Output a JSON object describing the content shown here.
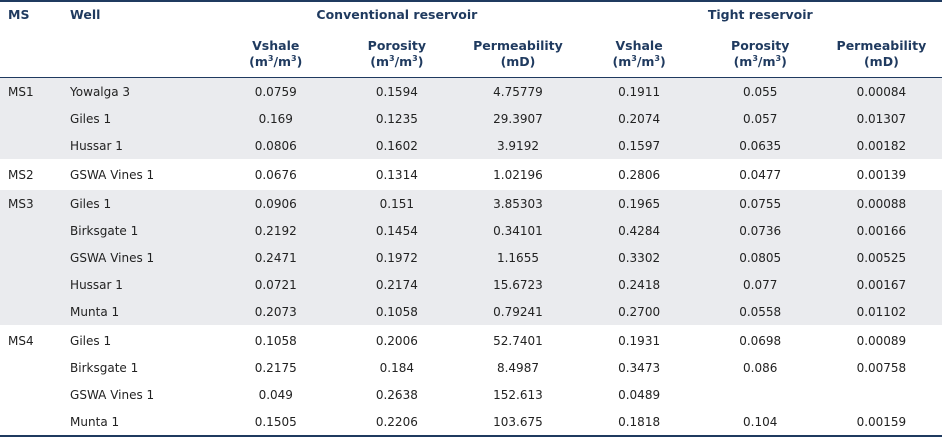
{
  "header": {
    "ms": "MS",
    "well": "Well",
    "conventional": "Conventional reservoir",
    "tight": "Tight reservoir",
    "vshale": "Vshale",
    "porosity": "Porosity",
    "permeability": "Permeability",
    "unit_frac_base": "(m",
    "unit_frac_mid": "/m",
    "unit_frac_end": ")",
    "unit_frac_exp": "3",
    "unit_md": "(mD)"
  },
  "groups": [
    {
      "ms": "MS1",
      "rows": [
        {
          "well": "Yowalga 3",
          "c_vsh": "0.0759",
          "c_por": "0.1594",
          "c_perm": "4.75779",
          "t_vsh": "0.1911",
          "t_por": "0.055",
          "t_perm": "0.00084"
        },
        {
          "well": "Giles 1",
          "c_vsh": "0.169",
          "c_por": "0.1235",
          "c_perm": "29.3907",
          "t_vsh": "0.2074",
          "t_por": "0.057",
          "t_perm": "0.01307"
        },
        {
          "well": "Hussar 1",
          "c_vsh": "0.0806",
          "c_por": "0.1602",
          "c_perm": "3.9192",
          "t_vsh": "0.1597",
          "t_por": "0.0635",
          "t_perm": "0.00182"
        }
      ]
    },
    {
      "ms": "MS2",
      "rows": [
        {
          "well": "GSWA Vines 1",
          "c_vsh": "0.0676",
          "c_por": "0.1314",
          "c_perm": "1.02196",
          "t_vsh": "0.2806",
          "t_por": "0.0477",
          "t_perm": "0.00139"
        }
      ]
    },
    {
      "ms": "MS3",
      "rows": [
        {
          "well": "Giles 1",
          "c_vsh": "0.0906",
          "c_por": "0.151",
          "c_perm": "3.85303",
          "t_vsh": "0.1965",
          "t_por": "0.0755",
          "t_perm": "0.00088"
        },
        {
          "well": "Birksgate 1",
          "c_vsh": "0.2192",
          "c_por": "0.1454",
          "c_perm": "0.34101",
          "t_vsh": "0.4284",
          "t_por": "0.0736",
          "t_perm": "0.00166"
        },
        {
          "well": "GSWA Vines 1",
          "c_vsh": "0.2471",
          "c_por": "0.1972",
          "c_perm": "1.1655",
          "t_vsh": "0.3302",
          "t_por": "0.0805",
          "t_perm": "0.00525"
        },
        {
          "well": "Hussar 1",
          "c_vsh": "0.0721",
          "c_por": "0.2174",
          "c_perm": "15.6723",
          "t_vsh": "0.2418",
          "t_por": "0.077",
          "t_perm": "0.00167"
        },
        {
          "well": "Munta 1",
          "c_vsh": "0.2073",
          "c_por": "0.1058",
          "c_perm": "0.79241",
          "t_vsh": "0.2700",
          "t_por": "0.0558",
          "t_perm": "0.01102"
        }
      ]
    },
    {
      "ms": "MS4",
      "rows": [
        {
          "well": "Giles 1",
          "c_vsh": "0.1058",
          "c_por": "0.2006",
          "c_perm": "52.7401",
          "t_vsh": "0.1931",
          "t_por": "0.0698",
          "t_perm": "0.00089"
        },
        {
          "well": "Birksgate 1",
          "c_vsh": "0.2175",
          "c_por": "0.184",
          "c_perm": "8.4987",
          "t_vsh": "0.3473",
          "t_por": "0.086",
          "t_perm": "0.00758"
        },
        {
          "well": "GSWA Vines 1",
          "c_vsh": "0.049",
          "c_por": "0.2638",
          "c_perm": "152.613",
          "t_vsh": "0.0489",
          "t_por": "",
          "t_perm": ""
        },
        {
          "well": "Munta 1",
          "c_vsh": "0.1505",
          "c_por": "0.2206",
          "c_perm": "103.675",
          "t_vsh": "0.1818",
          "t_por": "0.104",
          "t_perm": "0.00159"
        }
      ]
    }
  ]
}
